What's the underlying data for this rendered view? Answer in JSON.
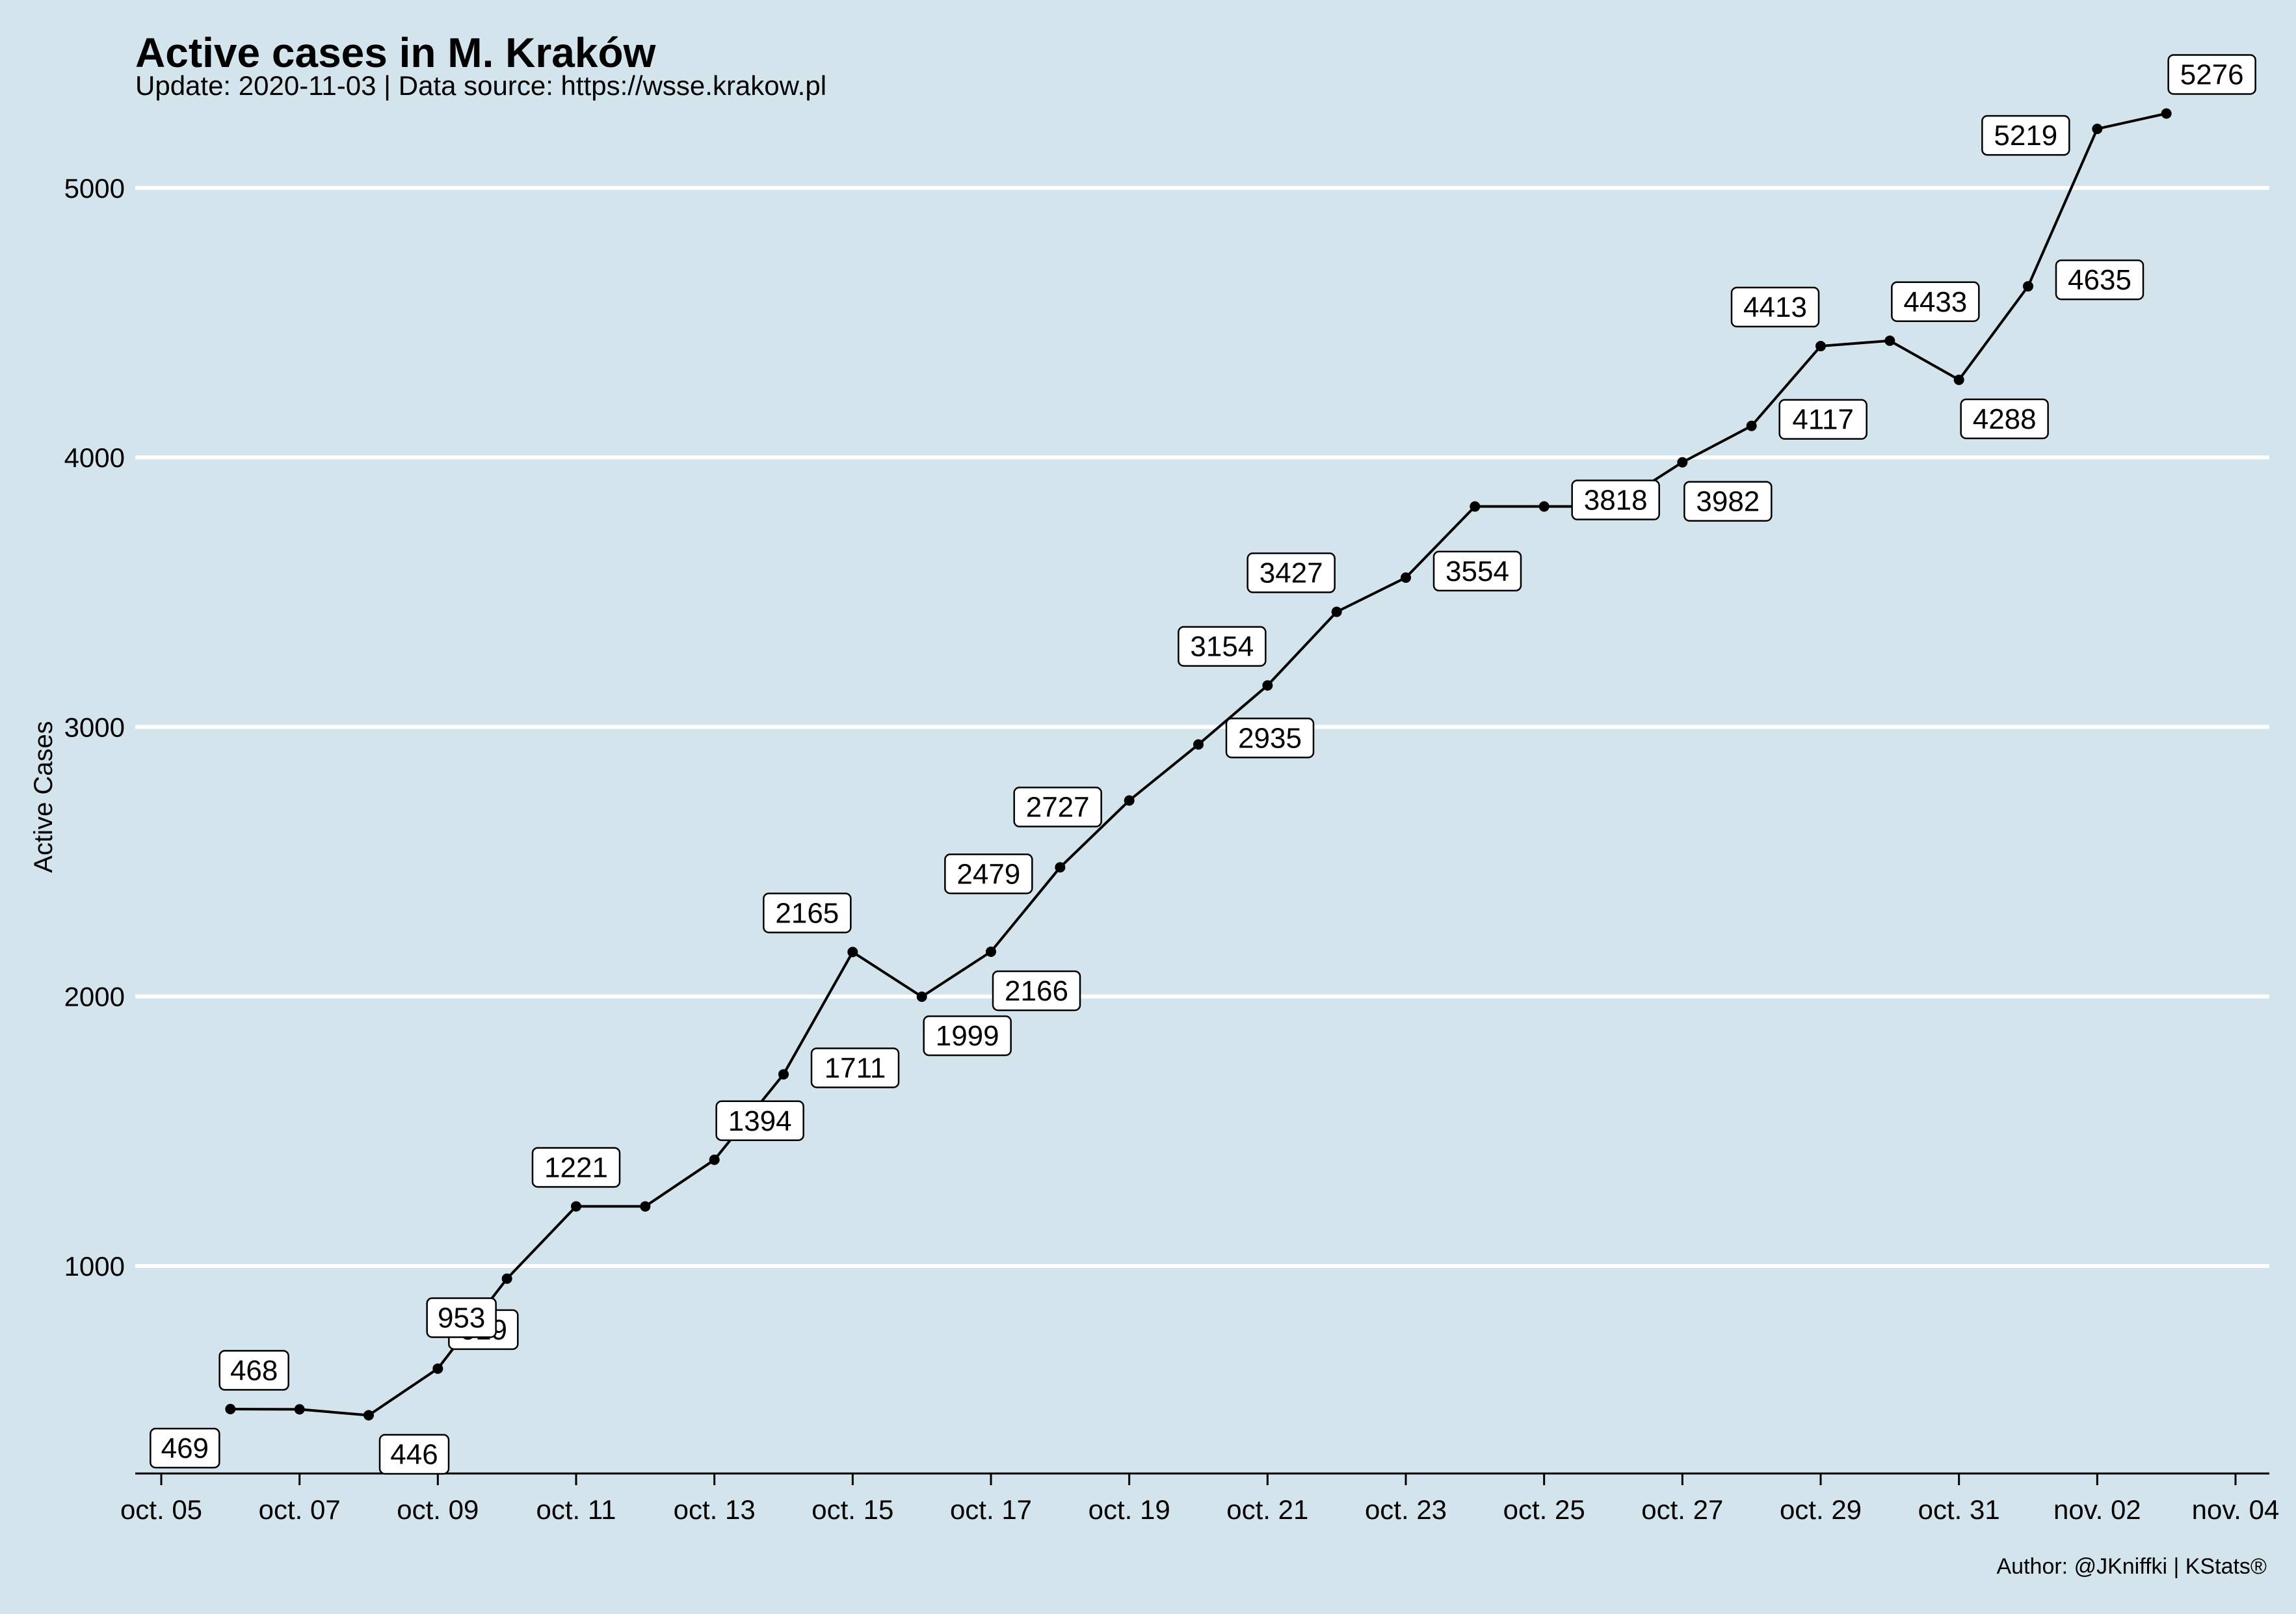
{
  "chart_data": {
    "type": "line",
    "title": "Active cases in M. Kraków",
    "subtitle": "Update: 2020-11-03 | Data source: https://wsse.krakow.pl",
    "caption": "Author: @JKniffki | KStats®",
    "xlabel": "",
    "ylabel": "Active Cases",
    "x": [
      "2020-10-06",
      "2020-10-07",
      "2020-10-08",
      "2020-10-09",
      "2020-10-10",
      "2020-10-11",
      "2020-10-12",
      "2020-10-13",
      "2020-10-14",
      "2020-10-15",
      "2020-10-16",
      "2020-10-17",
      "2020-10-18",
      "2020-10-19",
      "2020-10-20",
      "2020-10-21",
      "2020-10-22",
      "2020-10-23",
      "2020-10-24",
      "2020-10-25",
      "2020-10-26",
      "2020-10-27",
      "2020-10-28",
      "2020-10-29",
      "2020-10-30",
      "2020-10-31",
      "2020-11-01",
      "2020-11-02",
      "2020-11-03"
    ],
    "series": [
      {
        "values": [
          469,
          468,
          446,
          619,
          953,
          1221,
          1221,
          1394,
          1711,
          2165,
          1999,
          2166,
          2479,
          2727,
          2935,
          3154,
          3427,
          3554,
          3818,
          3818,
          3818,
          3982,
          4117,
          4413,
          4433,
          4288,
          4635,
          5219,
          5276
        ]
      }
    ],
    "labels": [
      {
        "date": "2020-10-06",
        "text": "469",
        "pos": "below-left"
      },
      {
        "date": "2020-10-07",
        "text": "468",
        "pos": "above-left"
      },
      {
        "date": "2020-10-08",
        "text": "446",
        "pos": "below-right"
      },
      {
        "date": "2020-10-09",
        "text": "619",
        "pos": "above-right"
      },
      {
        "date": "2020-10-10",
        "text": "953",
        "pos": "below-left"
      },
      {
        "date": "2020-10-11",
        "text": "1221",
        "pos": "above"
      },
      {
        "date": "2020-10-13",
        "text": "1394",
        "pos": "above-right"
      },
      {
        "date": "2020-10-14",
        "text": "1711",
        "pos": "right"
      },
      {
        "date": "2020-10-15",
        "text": "2165",
        "pos": "above-left"
      },
      {
        "date": "2020-10-16",
        "text": "1999",
        "pos": "below-right"
      },
      {
        "date": "2020-10-17",
        "text": "2166",
        "pos": "below-right"
      },
      {
        "date": "2020-10-18",
        "text": "2479",
        "pos": "left"
      },
      {
        "date": "2020-10-19",
        "text": "2727",
        "pos": "left"
      },
      {
        "date": "2020-10-20",
        "text": "2935",
        "pos": "right"
      },
      {
        "date": "2020-10-21",
        "text": "3154",
        "pos": "above-left"
      },
      {
        "date": "2020-10-22",
        "text": "3427",
        "pos": "above-left"
      },
      {
        "date": "2020-10-23",
        "text": "3554",
        "pos": "right"
      },
      {
        "date": "2020-10-25",
        "text": "3818",
        "pos": "right"
      },
      {
        "date": "2020-10-27",
        "text": "3982",
        "pos": "below-right"
      },
      {
        "date": "2020-10-28",
        "text": "4117",
        "pos": "right"
      },
      {
        "date": "2020-10-29",
        "text": "4413",
        "pos": "above-left"
      },
      {
        "date": "2020-10-30",
        "text": "4433",
        "pos": "above-right"
      },
      {
        "date": "2020-10-31",
        "text": "4288",
        "pos": "below-right"
      },
      {
        "date": "2020-11-01",
        "text": "4635",
        "pos": "right"
      },
      {
        "date": "2020-11-02",
        "text": "5219",
        "pos": "left"
      },
      {
        "date": "2020-11-03",
        "text": "5276",
        "pos": "above-right"
      }
    ],
    "x_ticks": [
      {
        "date": "2020-10-05",
        "label": "oct. 05"
      },
      {
        "date": "2020-10-07",
        "label": "oct. 07"
      },
      {
        "date": "2020-10-09",
        "label": "oct. 09"
      },
      {
        "date": "2020-10-11",
        "label": "oct. 11"
      },
      {
        "date": "2020-10-13",
        "label": "oct. 13"
      },
      {
        "date": "2020-10-15",
        "label": "oct. 15"
      },
      {
        "date": "2020-10-17",
        "label": "oct. 17"
      },
      {
        "date": "2020-10-19",
        "label": "oct. 19"
      },
      {
        "date": "2020-10-21",
        "label": "oct. 21"
      },
      {
        "date": "2020-10-23",
        "label": "oct. 23"
      },
      {
        "date": "2020-10-25",
        "label": "oct. 25"
      },
      {
        "date": "2020-10-27",
        "label": "oct. 27"
      },
      {
        "date": "2020-10-29",
        "label": "oct. 29"
      },
      {
        "date": "2020-10-31",
        "label": "oct. 31"
      },
      {
        "date": "2020-11-02",
        "label": "nov. 02"
      },
      {
        "date": "2020-11-04",
        "label": "nov. 04"
      }
    ],
    "y_ticks": [
      1000,
      2000,
      3000,
      4000,
      5000
    ],
    "xlim": [
      "2020-10-05",
      "2020-11-04"
    ],
    "ylim": [
      230,
      5480
    ],
    "grid": "horizontal major lines",
    "colors": {
      "background": "#d4e4ec",
      "grid": "#ffffff",
      "line": "#000000",
      "label_box": "#ffffff"
    }
  }
}
